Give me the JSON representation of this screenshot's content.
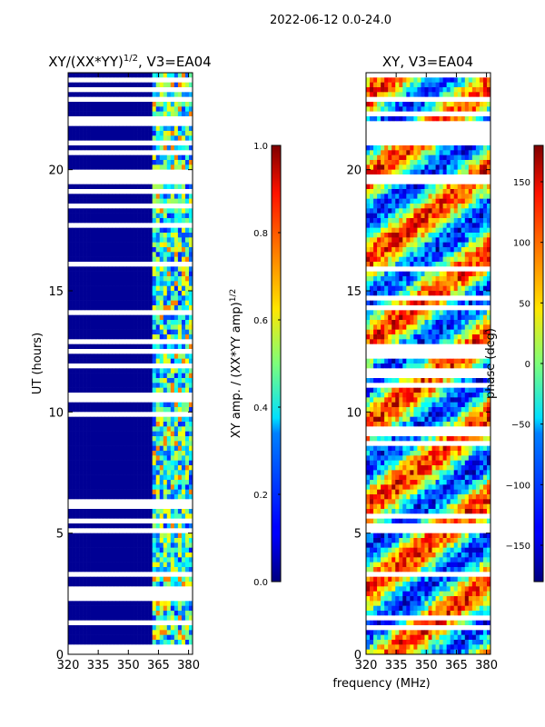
{
  "suptitle": "2022-06-12 0.0-24.0",
  "chart_data": [
    {
      "type": "heatmap",
      "title": "XY/(XX*YY)^{1/2}, V3=EA04",
      "title_parts": {
        "base": "XY/(XX*YY)",
        "sup": "1/2",
        "tail": ", V3=EA04"
      },
      "xlabel": "",
      "ylabel": "UT (hours)",
      "xlim": [
        320,
        382
      ],
      "ylim": [
        0,
        24
      ],
      "xticks": [
        "320",
        "335",
        "350",
        "365",
        "380"
      ],
      "yticks": [
        "0",
        "5",
        "10",
        "15",
        "20"
      ],
      "colorbar": {
        "label_base": "XY amp. / (XX*YY amp)",
        "label_sup": "1/2",
        "range": [
          0.0,
          1.0
        ],
        "ticks": [
          "0.0",
          "0.2",
          "0.4",
          "0.6",
          "0.8",
          "1.0"
        ],
        "colormap": "jet"
      }
    },
    {
      "type": "heatmap",
      "title": "XY, V3=EA04",
      "xlabel": "frequency (MHz)",
      "ylabel": "",
      "xlim": [
        320,
        382
      ],
      "ylim": [
        0,
        24
      ],
      "xticks": [
        "320",
        "335",
        "350",
        "365",
        "380"
      ],
      "yticks": [
        "0",
        "5",
        "10",
        "15",
        "20"
      ],
      "colorbar": {
        "label": "phase (deg)",
        "range": [
          -180,
          180
        ],
        "ticks": [
          "−150",
          "−100",
          "−50",
          "0",
          "50",
          "100",
          "150"
        ],
        "colormap": "jet"
      }
    }
  ]
}
